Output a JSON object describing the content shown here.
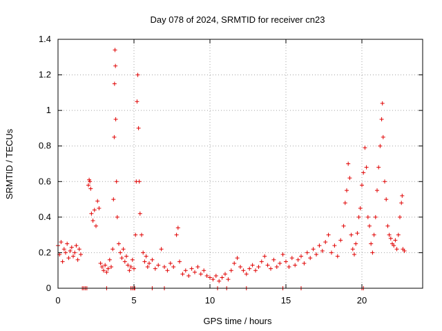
{
  "chart_data": {
    "type": "scatter",
    "title": "Day 078 of 2024, SRMTID for receiver cn23",
    "xlabel": "GPS time / hours",
    "ylabel": "SRMTID / TECUs",
    "xlim": [
      0,
      24
    ],
    "ylim": [
      0,
      1.4
    ],
    "xticks": [
      0,
      5,
      10,
      15,
      20
    ],
    "xtick_labels": [
      "0",
      "5",
      "10",
      "15",
      "20"
    ],
    "yticks": [
      0,
      0.2,
      0.4,
      0.6,
      0.8,
      1.0,
      1.2,
      1.4
    ],
    "ytick_labels": [
      "0",
      "0.2",
      "0.4",
      "0.6",
      "0.8",
      "1",
      "1.2",
      "1.4"
    ],
    "grid": true,
    "marker": "+",
    "color": "#e00000",
    "series": [
      {
        "name": "SRMTID",
        "points": [
          [
            0.0,
            0.24
          ],
          [
            0.1,
            0.19
          ],
          [
            0.2,
            0.26
          ],
          [
            0.3,
            0.15
          ],
          [
            0.4,
            0.22
          ],
          [
            0.5,
            0.2
          ],
          [
            0.6,
            0.25
          ],
          [
            0.7,
            0.17
          ],
          [
            0.8,
            0.21
          ],
          [
            0.9,
            0.23
          ],
          [
            1.0,
            0.18
          ],
          [
            1.1,
            0.2
          ],
          [
            1.2,
            0.24
          ],
          [
            1.3,
            0.16
          ],
          [
            1.4,
            0.22
          ],
          [
            1.5,
            0.19
          ],
          [
            1.8,
            0.0
          ],
          [
            1.9,
            0.0
          ],
          [
            2.0,
            0.58
          ],
          [
            2.05,
            0.61
          ],
          [
            2.1,
            0.6
          ],
          [
            2.15,
            0.56
          ],
          [
            2.2,
            0.42
          ],
          [
            2.3,
            0.38
          ],
          [
            2.4,
            0.44
          ],
          [
            2.5,
            0.35
          ],
          [
            2.6,
            0.49
          ],
          [
            2.7,
            0.45
          ],
          [
            2.8,
            0.14
          ],
          [
            2.9,
            0.12
          ],
          [
            3.0,
            0.1
          ],
          [
            3.1,
            0.13
          ],
          [
            3.2,
            0.09
          ],
          [
            3.3,
            0.11
          ],
          [
            3.4,
            0.16
          ],
          [
            3.5,
            0.12
          ],
          [
            3.6,
            0.22
          ],
          [
            3.65,
            0.5
          ],
          [
            3.7,
            0.85
          ],
          [
            3.72,
            1.15
          ],
          [
            3.75,
            1.34
          ],
          [
            3.78,
            1.25
          ],
          [
            3.8,
            0.95
          ],
          [
            3.85,
            0.6
          ],
          [
            3.9,
            0.4
          ],
          [
            4.0,
            0.25
          ],
          [
            4.1,
            0.2
          ],
          [
            4.2,
            0.17
          ],
          [
            4.3,
            0.22
          ],
          [
            4.4,
            0.15
          ],
          [
            4.5,
            0.18
          ],
          [
            4.6,
            0.13
          ],
          [
            4.7,
            0.1
          ],
          [
            4.8,
            0.12
          ],
          [
            4.9,
            0.16
          ],
          [
            5.0,
            0.11
          ],
          [
            5.1,
            0.3
          ],
          [
            5.15,
            0.6
          ],
          [
            5.2,
            1.05
          ],
          [
            5.25,
            1.2
          ],
          [
            5.3,
            0.9
          ],
          [
            5.35,
            0.6
          ],
          [
            5.4,
            0.42
          ],
          [
            5.5,
            0.3
          ],
          [
            5.6,
            0.2
          ],
          [
            5.7,
            0.15
          ],
          [
            5.8,
            0.18
          ],
          [
            5.9,
            0.12
          ],
          [
            6.0,
            0.14
          ],
          [
            6.2,
            0.16
          ],
          [
            6.4,
            0.11
          ],
          [
            6.6,
            0.13
          ],
          [
            6.8,
            0.22
          ],
          [
            7.0,
            0.12
          ],
          [
            7.2,
            0.1
          ],
          [
            7.4,
            0.14
          ],
          [
            7.6,
            0.12
          ],
          [
            7.8,
            0.3
          ],
          [
            7.9,
            0.34
          ],
          [
            8.0,
            0.15
          ],
          [
            8.2,
            0.08
          ],
          [
            8.4,
            0.1
          ],
          [
            8.6,
            0.07
          ],
          [
            8.8,
            0.11
          ],
          [
            9.0,
            0.09
          ],
          [
            9.2,
            0.12
          ],
          [
            9.4,
            0.08
          ],
          [
            9.6,
            0.1
          ],
          [
            9.8,
            0.07
          ],
          [
            10.0,
            0.06
          ],
          [
            10.2,
            0.05
          ],
          [
            10.4,
            0.07
          ],
          [
            10.6,
            0.04
          ],
          [
            10.8,
            0.06
          ],
          [
            11.0,
            0.08
          ],
          [
            11.2,
            0.05
          ],
          [
            11.4,
            0.1
          ],
          [
            11.6,
            0.14
          ],
          [
            11.8,
            0.17
          ],
          [
            12.0,
            0.12
          ],
          [
            12.2,
            0.1
          ],
          [
            12.4,
            0.08
          ],
          [
            12.6,
            0.11
          ],
          [
            12.8,
            0.13
          ],
          [
            13.0,
            0.1
          ],
          [
            13.2,
            0.12
          ],
          [
            13.4,
            0.15
          ],
          [
            13.6,
            0.18
          ],
          [
            13.8,
            0.13
          ],
          [
            14.0,
            0.11
          ],
          [
            14.2,
            0.16
          ],
          [
            14.4,
            0.12
          ],
          [
            14.6,
            0.14
          ],
          [
            14.8,
            0.19
          ],
          [
            15.0,
            0.15
          ],
          [
            15.2,
            0.12
          ],
          [
            15.4,
            0.17
          ],
          [
            15.6,
            0.13
          ],
          [
            15.8,
            0.16
          ],
          [
            16.0,
            0.18
          ],
          [
            16.2,
            0.14
          ],
          [
            16.4,
            0.2
          ],
          [
            16.6,
            0.17
          ],
          [
            16.8,
            0.22
          ],
          [
            17.0,
            0.19
          ],
          [
            17.2,
            0.24
          ],
          [
            17.4,
            0.21
          ],
          [
            17.6,
            0.26
          ],
          [
            17.8,
            0.3
          ],
          [
            18.0,
            0.2
          ],
          [
            18.2,
            0.24
          ],
          [
            18.4,
            0.18
          ],
          [
            18.6,
            0.27
          ],
          [
            18.8,
            0.35
          ],
          [
            18.9,
            0.48
          ],
          [
            19.0,
            0.55
          ],
          [
            19.1,
            0.7
          ],
          [
            19.2,
            0.62
          ],
          [
            19.3,
            0.3
          ],
          [
            19.4,
            0.22
          ],
          [
            19.5,
            0.19
          ],
          [
            19.6,
            0.25
          ],
          [
            19.7,
            0.31
          ],
          [
            19.8,
            0.4
          ],
          [
            19.9,
            0.45
          ],
          [
            20.0,
            0.58
          ],
          [
            20.1,
            0.65
          ],
          [
            20.2,
            0.79
          ],
          [
            20.3,
            0.68
          ],
          [
            20.4,
            0.4
          ],
          [
            20.5,
            0.35
          ],
          [
            20.6,
            0.25
          ],
          [
            20.7,
            0.2
          ],
          [
            20.8,
            0.3
          ],
          [
            20.9,
            0.4
          ],
          [
            21.0,
            0.55
          ],
          [
            21.1,
            0.68
          ],
          [
            21.2,
            0.8
          ],
          [
            21.3,
            0.95
          ],
          [
            21.35,
            1.04
          ],
          [
            21.4,
            0.85
          ],
          [
            21.5,
            0.6
          ],
          [
            21.6,
            0.5
          ],
          [
            21.7,
            0.35
          ],
          [
            21.8,
            0.3
          ],
          [
            21.9,
            0.28
          ],
          [
            22.0,
            0.25
          ],
          [
            22.1,
            0.24
          ],
          [
            22.2,
            0.27
          ],
          [
            22.3,
            0.22
          ],
          [
            22.4,
            0.3
          ],
          [
            22.5,
            0.4
          ],
          [
            22.6,
            0.48
          ],
          [
            22.65,
            0.52
          ],
          [
            22.7,
            0.22
          ],
          [
            22.8,
            0.21
          ],
          [
            1.6,
            0.0
          ],
          [
            1.7,
            0.0
          ],
          [
            3.2,
            0.0
          ],
          [
            4.8,
            0.0
          ],
          [
            4.9,
            0.0
          ],
          [
            5.0,
            0.0
          ],
          [
            5.05,
            0.0
          ],
          [
            6.2,
            0.0
          ],
          [
            7.0,
            0.0
          ],
          [
            10.5,
            0.0
          ],
          [
            11.1,
            0.0
          ],
          [
            12.4,
            0.0
          ],
          [
            14.8,
            0.0
          ],
          [
            16.0,
            0.0
          ],
          [
            20.0,
            0.0
          ],
          [
            20.1,
            0.0
          ]
        ]
      }
    ]
  }
}
